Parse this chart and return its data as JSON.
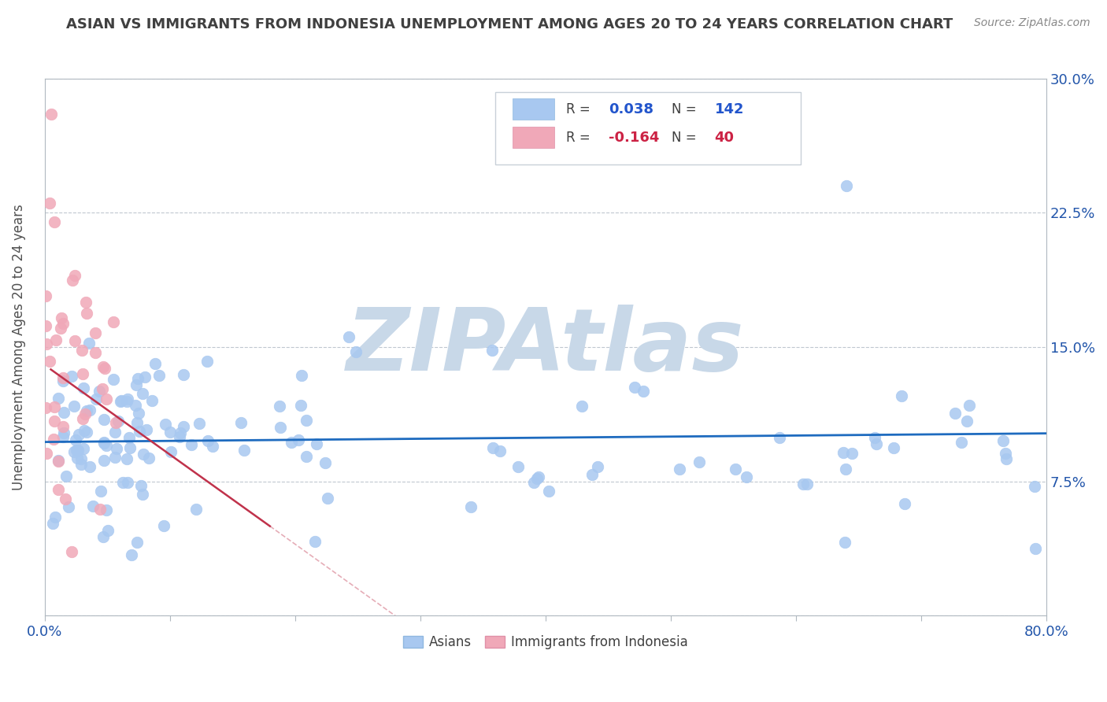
{
  "title": "ASIAN VS IMMIGRANTS FROM INDONESIA UNEMPLOYMENT AMONG AGES 20 TO 24 YEARS CORRELATION CHART",
  "source": "Source: ZipAtlas.com",
  "ylabel": "Unemployment Among Ages 20 to 24 years",
  "xlim": [
    0,
    0.8
  ],
  "ylim": [
    0,
    0.3
  ],
  "asian_R": 0.038,
  "asian_N": 142,
  "indonesia_R": -0.164,
  "indonesia_N": 40,
  "asian_color": "#a8c8f0",
  "indonesia_color": "#f0a8b8",
  "asian_line_color": "#1e6bbf",
  "indonesia_line_color": "#c0324b",
  "watermark": "ZIPAtlas",
  "watermark_color": "#c8d8e8",
  "background_color": "#ffffff",
  "grid_color": "#c0c8d0",
  "title_color": "#404040",
  "axis_label_color": "#505050",
  "tick_label_color": "#2255aa",
  "legend_R_color_asian": "#2255cc",
  "legend_R_color_indonesia": "#cc2244",
  "asian_seed": 42,
  "indonesia_seed": 7
}
